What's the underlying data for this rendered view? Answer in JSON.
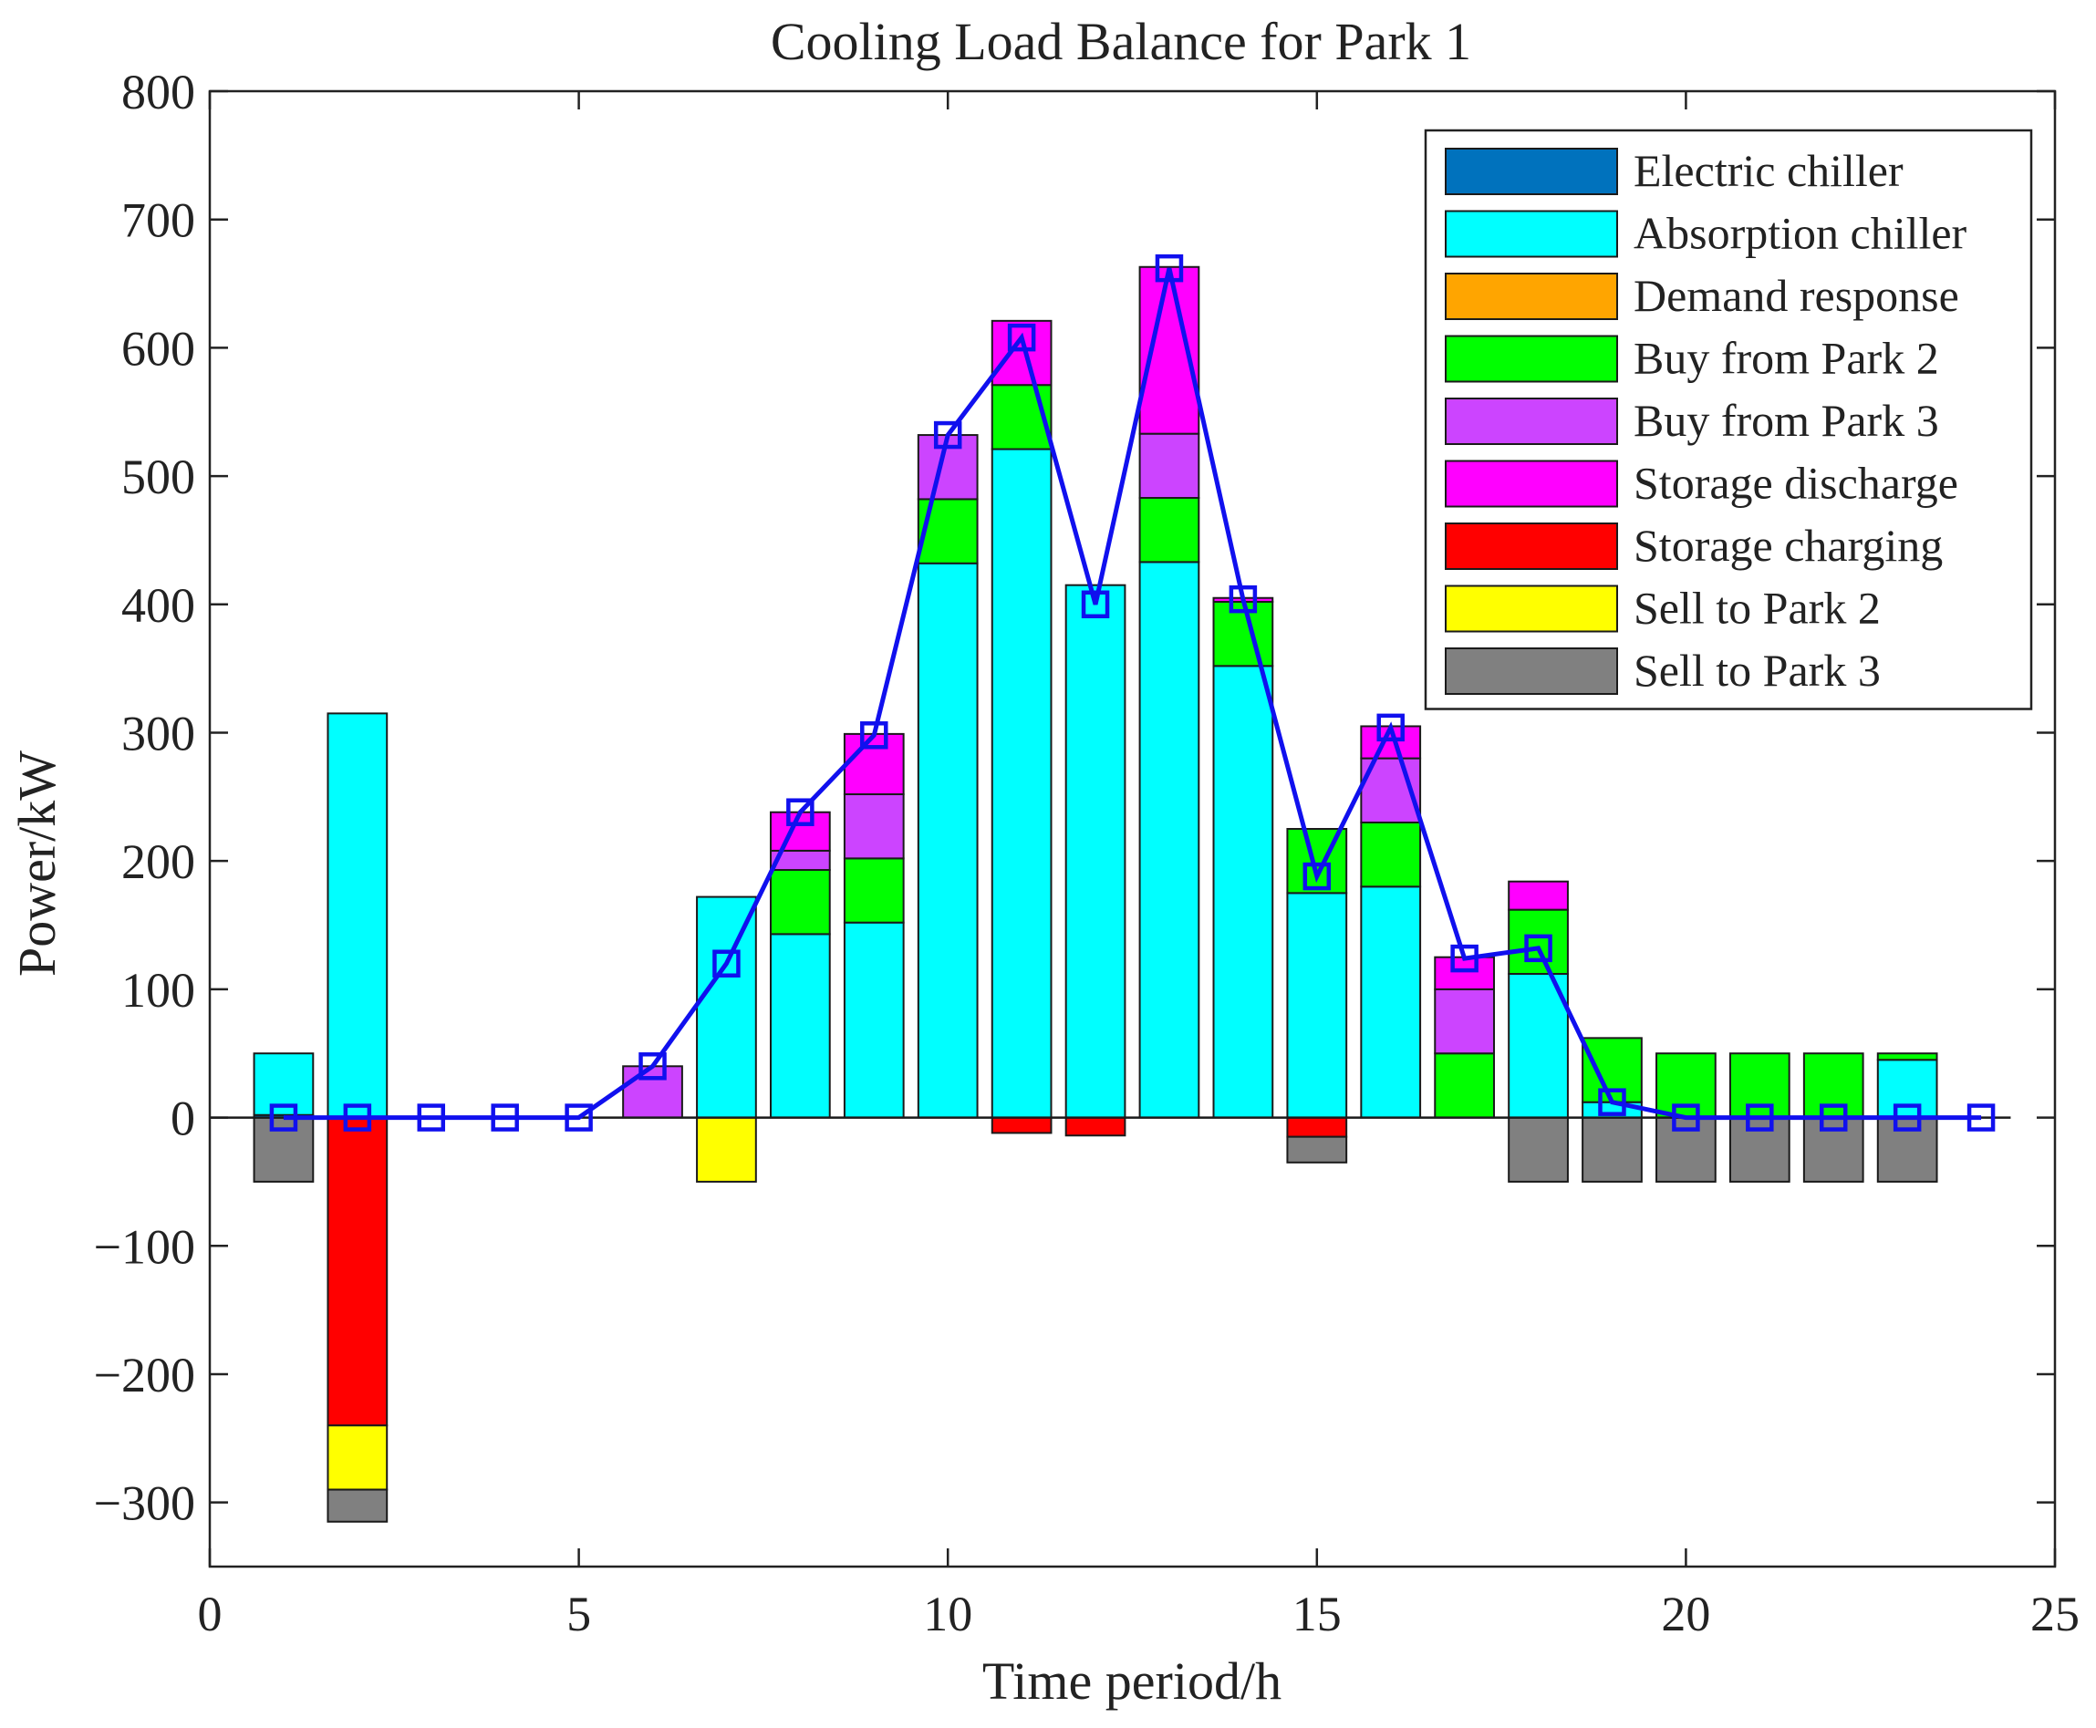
{
  "chart_data": {
    "type": "stacked-bar-with-line",
    "title": "Cooling Load Balance for Park 1",
    "xlabel": "Time period/h",
    "ylabel": "Power/kW",
    "xlim": [
      0,
      25
    ],
    "ylim": [
      -350,
      800
    ],
    "xticks": [
      0,
      5,
      10,
      15,
      20,
      25
    ],
    "yticks": [
      800,
      700,
      600,
      500,
      400,
      300,
      200,
      100,
      0,
      -100,
      -200,
      -300
    ],
    "ytick_labels": [
      "800",
      "700",
      "600",
      "500",
      "400",
      "300",
      "200",
      "100",
      "0",
      "−100",
      "−200",
      "−300"
    ],
    "legend_position": "top-right",
    "x": [
      1,
      2,
      3,
      4,
      5,
      6,
      7,
      8,
      9,
      10,
      11,
      12,
      13,
      14,
      15,
      16,
      17,
      18,
      19,
      20,
      21,
      22,
      23,
      24
    ],
    "series": [
      {
        "name": "Electric chiller",
        "color": "#0072BD",
        "values": [
          2,
          0,
          0,
          0,
          0,
          0,
          0,
          0,
          0,
          0,
          0,
          0,
          0,
          0,
          0,
          0,
          0,
          0,
          0,
          0,
          0,
          0,
          0,
          0
        ]
      },
      {
        "name": "Absorption chiller",
        "color": "#00FFFF",
        "values": [
          48,
          315,
          0,
          0,
          0,
          0,
          172,
          143,
          152,
          432,
          521,
          415,
          433,
          352,
          175,
          180,
          0,
          112,
          12,
          0,
          0,
          0,
          45,
          0
        ]
      },
      {
        "name": "Demand response",
        "color": "#FFA500",
        "values": [
          0,
          0,
          0,
          0,
          0,
          0,
          0,
          0,
          0,
          0,
          0,
          0,
          0,
          0,
          0,
          0,
          0,
          0,
          0,
          0,
          0,
          0,
          0,
          0
        ]
      },
      {
        "name": "Buy from Park 2",
        "color": "#00FF00",
        "values": [
          0,
          0,
          0,
          0,
          0,
          0,
          0,
          50,
          50,
          50,
          50,
          0,
          50,
          50,
          50,
          50,
          50,
          50,
          50,
          50,
          50,
          50,
          5,
          0
        ]
      },
      {
        "name": "Buy from Park 3",
        "color": "#CC44FF",
        "values": [
          0,
          0,
          0,
          0,
          0,
          40,
          0,
          15,
          50,
          50,
          0,
          0,
          50,
          0,
          0,
          50,
          50,
          0,
          0,
          0,
          0,
          0,
          0,
          0
        ]
      },
      {
        "name": "Storage discharge",
        "color": "#FF00FF",
        "values": [
          0,
          0,
          0,
          0,
          0,
          0,
          0,
          30,
          47,
          0,
          50,
          0,
          130,
          3,
          0,
          25,
          25,
          22,
          0,
          0,
          0,
          0,
          0,
          0
        ]
      },
      {
        "name": "Storage charging",
        "color": "#FF0000",
        "values": [
          0,
          -240,
          0,
          0,
          0,
          0,
          0,
          0,
          0,
          0,
          -12,
          -14,
          0,
          0,
          -15,
          0,
          0,
          0,
          0,
          0,
          0,
          0,
          0,
          0
        ]
      },
      {
        "name": "Sell to Park 2",
        "color": "#FFFF00",
        "values": [
          0,
          -50,
          0,
          0,
          0,
          0,
          -50,
          0,
          0,
          0,
          0,
          0,
          0,
          0,
          0,
          0,
          0,
          0,
          0,
          0,
          0,
          0,
          0,
          0
        ]
      },
      {
        "name": "Sell to Park 3",
        "color": "#808080",
        "values": [
          -50,
          -25,
          0,
          0,
          0,
          0,
          0,
          0,
          0,
          0,
          0,
          0,
          0,
          0,
          -20,
          0,
          0,
          -50,
          -50,
          -50,
          -50,
          -50,
          -50,
          0
        ]
      }
    ],
    "load_line": {
      "color": "#1010EE",
      "values": [
        0,
        0,
        0,
        0,
        0,
        40,
        120,
        238,
        298,
        532,
        608,
        400,
        662,
        404,
        188,
        304,
        124,
        132,
        12,
        0,
        0,
        0,
        0,
        0
      ]
    }
  }
}
